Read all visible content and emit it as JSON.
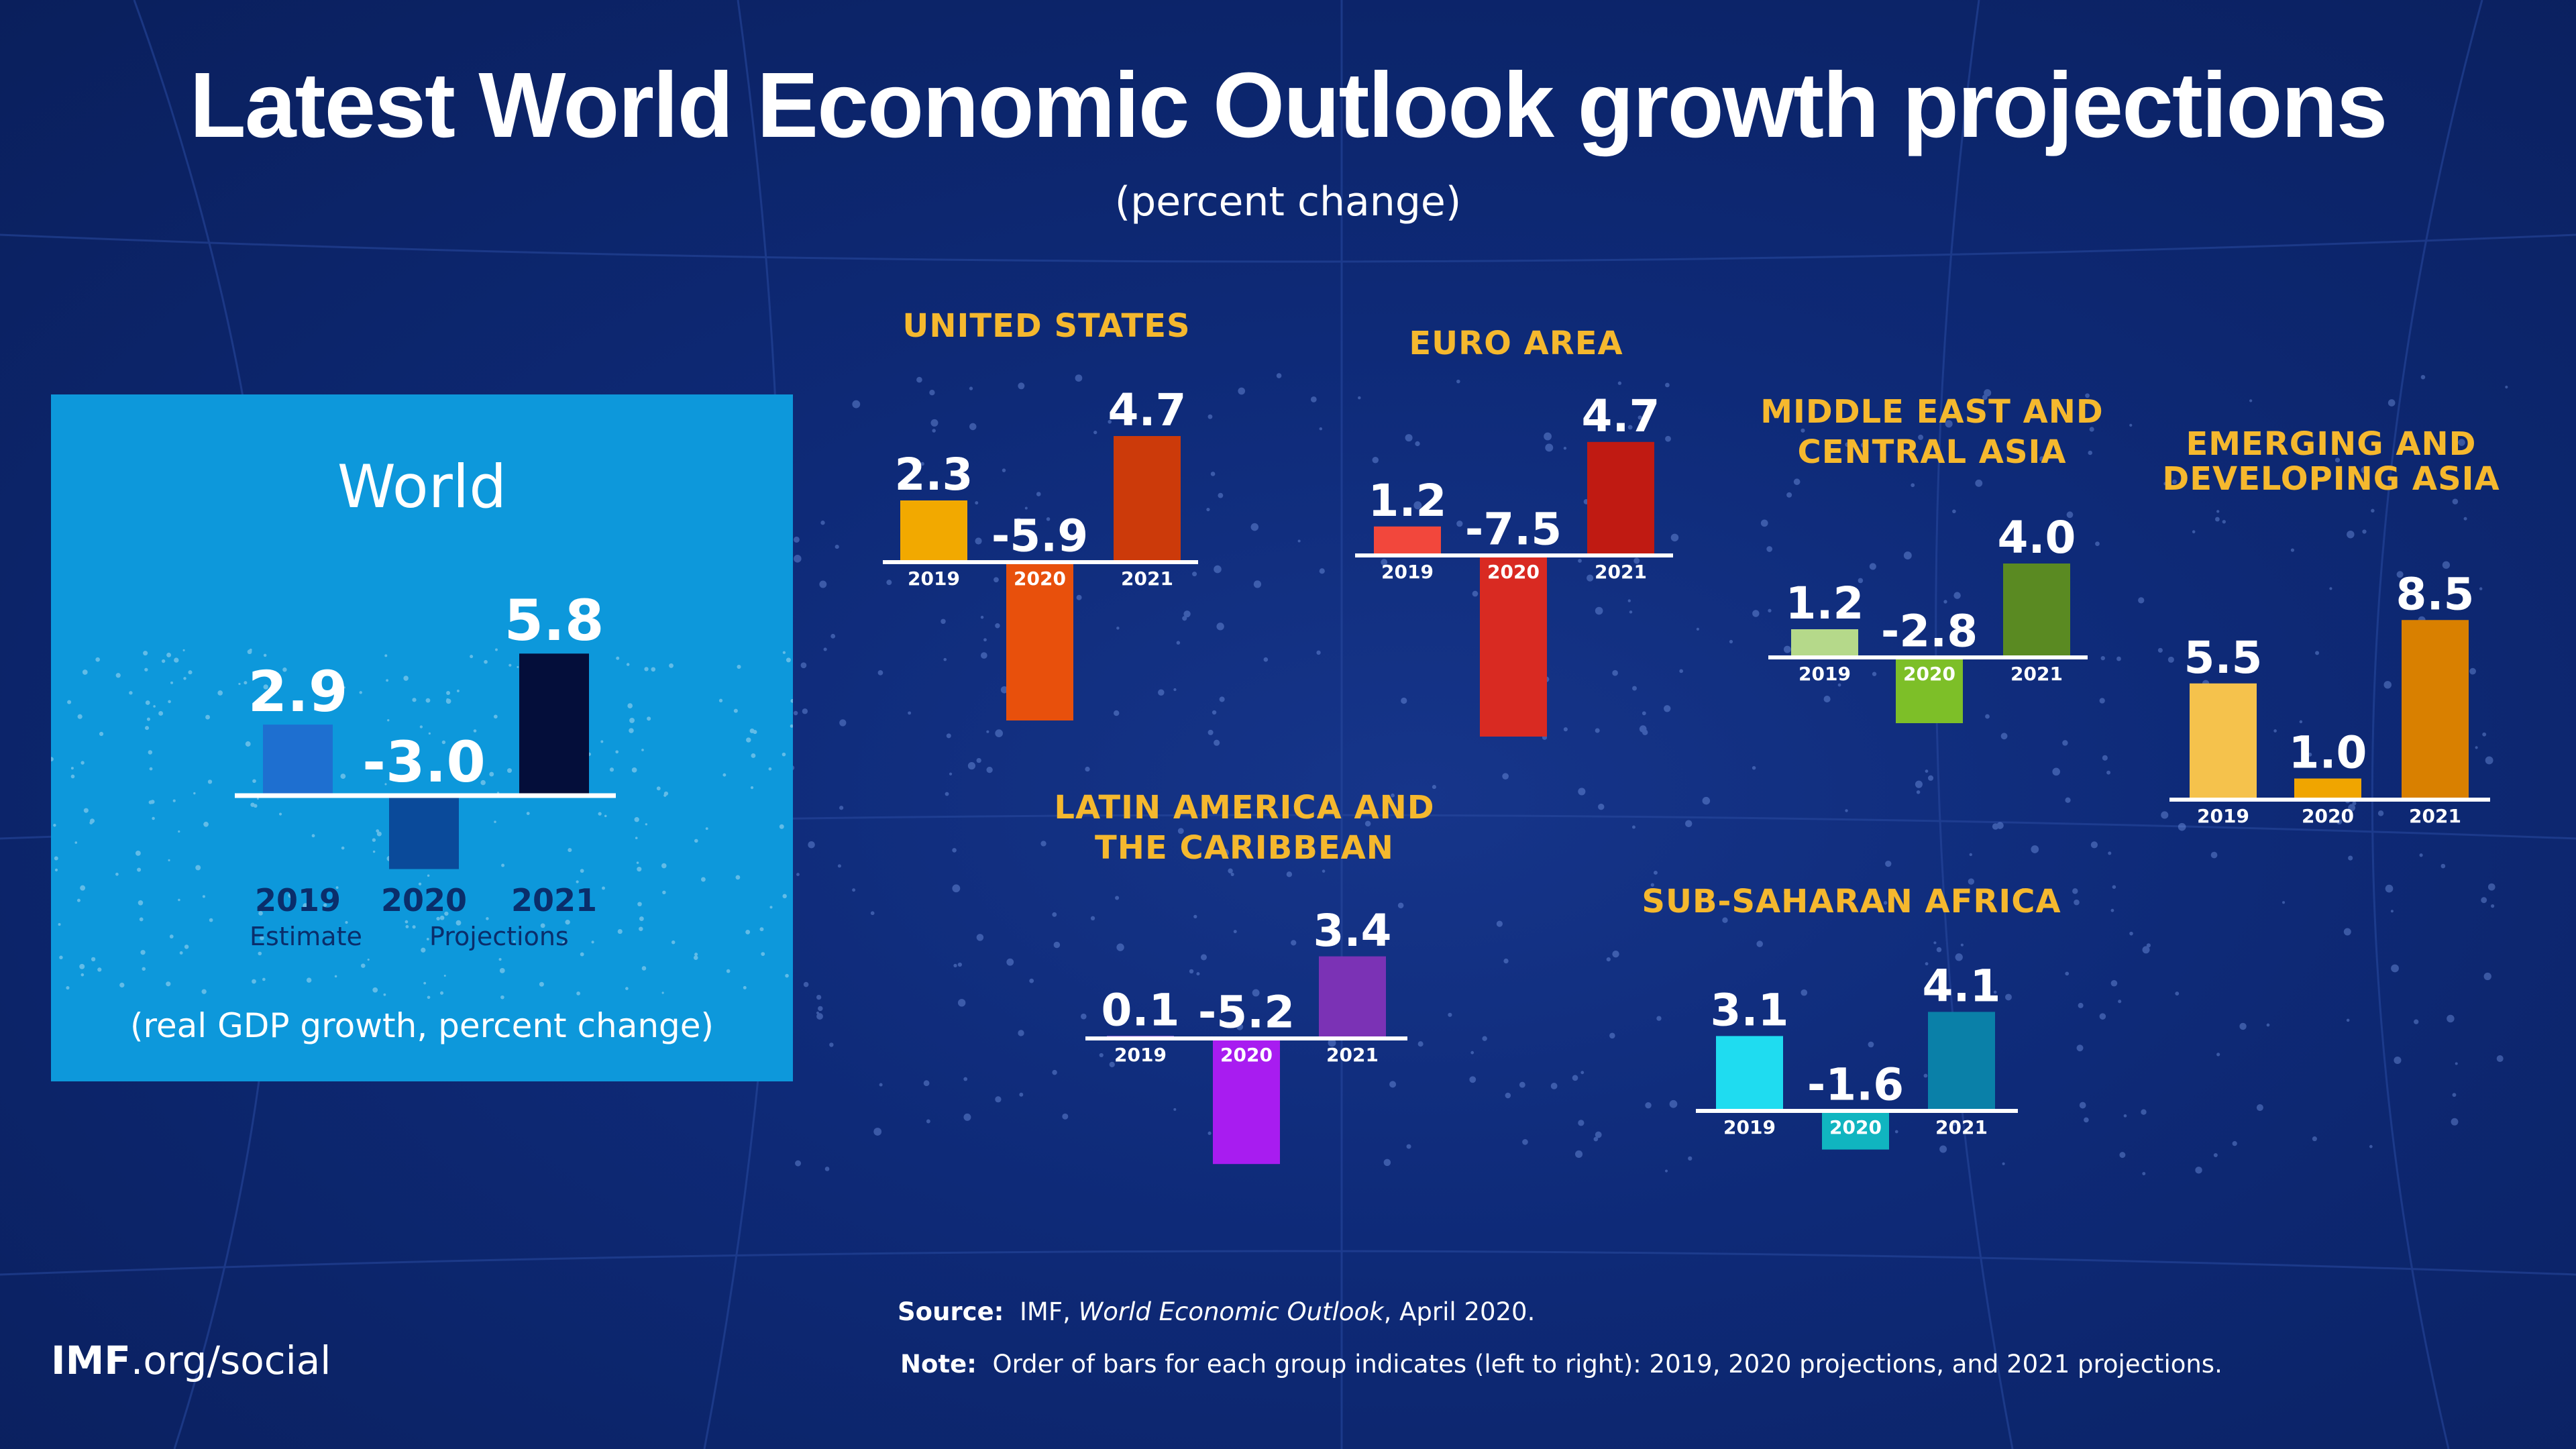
{
  "title": "Latest World Economic Outlook growth projections",
  "subtitle": "(percent change)",
  "world": {
    "label": "World",
    "estimate_label": "Estimate",
    "projections_label": "Projections",
    "note": "(real GDP growth, percent change)"
  },
  "regions": {
    "us": "UNITED STATES",
    "euro": "EURO AREA",
    "me": [
      "MIDDLE EAST AND",
      "CENTRAL ASIA"
    ],
    "asia": [
      "EMERGING AND",
      "DEVELOPING ASIA"
    ],
    "latam": [
      "LATIN AMERICA AND",
      "THE CARIBBEAN"
    ],
    "ssa": "SUB-SAHARAN AFRICA"
  },
  "footer": {
    "source_label": "Source:",
    "source_pre": "IMF, ",
    "source_title": "World Economic Outlook",
    "source_post": ", April 2020.",
    "note_label": "Note:",
    "note_text": "Order of bars for each group indicates (left to right): 2019, 2020 projections, and 2021 projections."
  },
  "brand": {
    "bold": "IMF",
    "rest": ".org/social"
  },
  "chart_data": [
    {
      "type": "bar",
      "title": "World",
      "categories": [
        "2019",
        "2020",
        "2021"
      ],
      "values": [
        2.9,
        -3.0,
        5.8
      ],
      "colors": [
        "#1e6fd0",
        "#0a4a9a",
        "#040e3a"
      ]
    },
    {
      "type": "bar",
      "title": "UNITED STATES",
      "categories": [
        "2019",
        "2020",
        "2021"
      ],
      "values": [
        2.3,
        -5.9,
        4.7
      ],
      "colors": [
        "#f2a900",
        "#e8500c",
        "#cc3a0a"
      ]
    },
    {
      "type": "bar",
      "title": "EURO AREA",
      "categories": [
        "2019",
        "2020",
        "2021"
      ],
      "values": [
        1.2,
        -7.5,
        4.7
      ],
      "colors": [
        "#f2473c",
        "#d92a22",
        "#c01a12"
      ]
    },
    {
      "type": "bar",
      "title": "MIDDLE EAST AND CENTRAL ASIA",
      "categories": [
        "2019",
        "2020",
        "2021"
      ],
      "values": [
        1.2,
        -2.8,
        4.0
      ],
      "colors": [
        "#b5d98a",
        "#7dbf28",
        "#5a8a22"
      ]
    },
    {
      "type": "bar",
      "title": "EMERGING AND DEVELOPING ASIA",
      "categories": [
        "2019",
        "2020",
        "2021"
      ],
      "values": [
        5.5,
        1.0,
        8.5
      ],
      "colors": [
        "#f5c24c",
        "#f0a500",
        "#d98000"
      ]
    },
    {
      "type": "bar",
      "title": "LATIN AMERICA AND THE CARIBBEAN",
      "categories": [
        "2019",
        "2020",
        "2021"
      ],
      "values": [
        0.1,
        -5.2,
        3.4
      ],
      "colors": [
        "#c87bff",
        "#a81cf0",
        "#7b32b5"
      ]
    },
    {
      "type": "bar",
      "title": "SUB-SAHARAN AFRICA",
      "categories": [
        "2019",
        "2020",
        "2021"
      ],
      "values": [
        3.1,
        -1.6,
        4.1
      ],
      "colors": [
        "#1fdcf0",
        "#10b5c0",
        "#0a80a8"
      ]
    }
  ]
}
